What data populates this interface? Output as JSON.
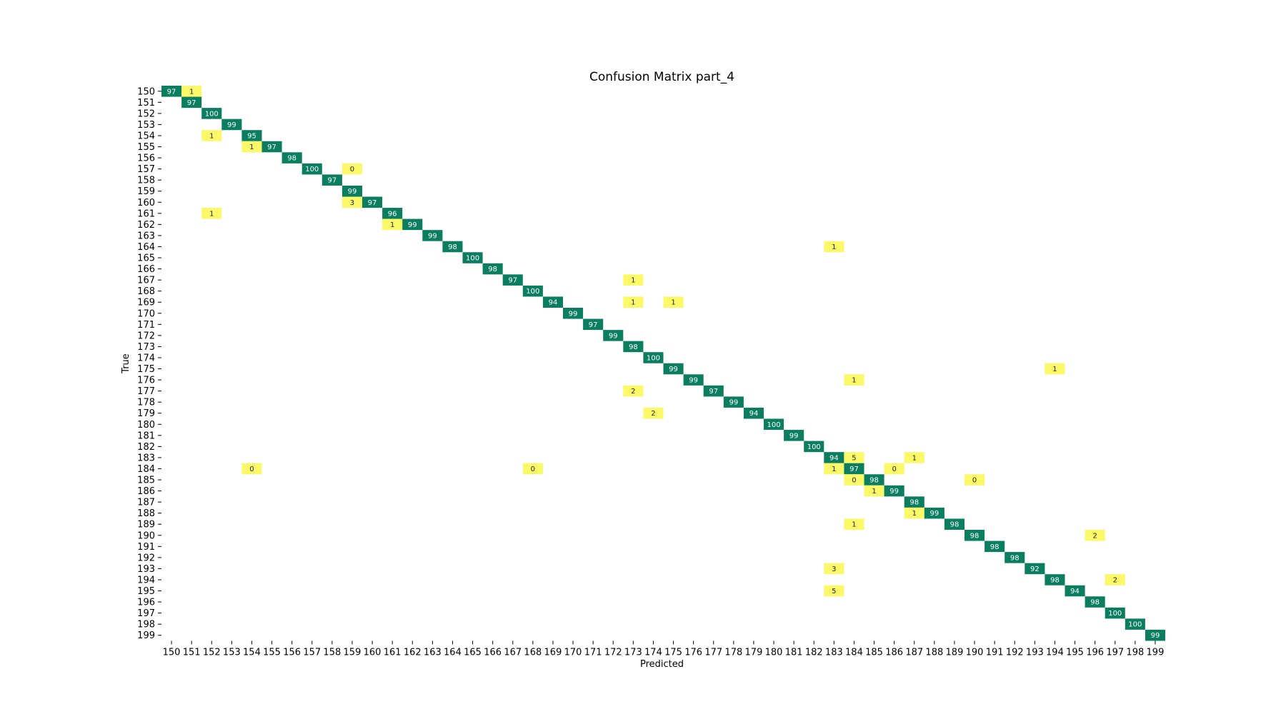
{
  "chart_data": {
    "type": "heatmap",
    "title": "Confusion Matrix part_4",
    "xlabel": "Predicted",
    "ylabel": "True",
    "x_categories": [
      "150",
      "151",
      "152",
      "153",
      "154",
      "155",
      "156",
      "157",
      "158",
      "159",
      "160",
      "161",
      "162",
      "163",
      "164",
      "165",
      "166",
      "167",
      "168",
      "169",
      "170",
      "171",
      "172",
      "173",
      "174",
      "175",
      "176",
      "177",
      "178",
      "179",
      "180",
      "181",
      "182",
      "183",
      "184",
      "185",
      "186",
      "187",
      "188",
      "189",
      "190",
      "191",
      "192",
      "193",
      "194",
      "195",
      "196",
      "197",
      "198",
      "199"
    ],
    "y_categories": [
      "150",
      "151",
      "152",
      "153",
      "154",
      "155",
      "156",
      "157",
      "158",
      "159",
      "160",
      "161",
      "162",
      "163",
      "164",
      "165",
      "166",
      "167",
      "168",
      "169",
      "170",
      "171",
      "172",
      "173",
      "174",
      "175",
      "176",
      "177",
      "178",
      "179",
      "180",
      "181",
      "182",
      "183",
      "184",
      "185",
      "186",
      "187",
      "188",
      "189",
      "190",
      "191",
      "192",
      "193",
      "194",
      "195",
      "196",
      "197",
      "198",
      "199"
    ],
    "cells": [
      {
        "true": "150",
        "pred": "150",
        "value": 97
      },
      {
        "true": "150",
        "pred": "151",
        "value": 1
      },
      {
        "true": "151",
        "pred": "151",
        "value": 97
      },
      {
        "true": "152",
        "pred": "152",
        "value": 100
      },
      {
        "true": "153",
        "pred": "153",
        "value": 99
      },
      {
        "true": "154",
        "pred": "152",
        "value": 1
      },
      {
        "true": "154",
        "pred": "154",
        "value": 95
      },
      {
        "true": "155",
        "pred": "154",
        "value": 1
      },
      {
        "true": "155",
        "pred": "155",
        "value": 97
      },
      {
        "true": "156",
        "pred": "156",
        "value": 98
      },
      {
        "true": "157",
        "pred": "157",
        "value": 100
      },
      {
        "true": "157",
        "pred": "159",
        "value": 0
      },
      {
        "true": "158",
        "pred": "158",
        "value": 97
      },
      {
        "true": "159",
        "pred": "159",
        "value": 99
      },
      {
        "true": "160",
        "pred": "159",
        "value": 3
      },
      {
        "true": "160",
        "pred": "160",
        "value": 97
      },
      {
        "true": "161",
        "pred": "152",
        "value": 1
      },
      {
        "true": "161",
        "pred": "161",
        "value": 96
      },
      {
        "true": "162",
        "pred": "161",
        "value": 1
      },
      {
        "true": "162",
        "pred": "162",
        "value": 99
      },
      {
        "true": "163",
        "pred": "163",
        "value": 99
      },
      {
        "true": "164",
        "pred": "164",
        "value": 98
      },
      {
        "true": "164",
        "pred": "183",
        "value": 1
      },
      {
        "true": "165",
        "pred": "165",
        "value": 100
      },
      {
        "true": "166",
        "pred": "166",
        "value": 98
      },
      {
        "true": "167",
        "pred": "167",
        "value": 97
      },
      {
        "true": "167",
        "pred": "173",
        "value": 1
      },
      {
        "true": "168",
        "pred": "168",
        "value": 100
      },
      {
        "true": "169",
        "pred": "169",
        "value": 94
      },
      {
        "true": "169",
        "pred": "173",
        "value": 1
      },
      {
        "true": "169",
        "pred": "175",
        "value": 1
      },
      {
        "true": "170",
        "pred": "170",
        "value": 99
      },
      {
        "true": "171",
        "pred": "171",
        "value": 97
      },
      {
        "true": "172",
        "pred": "172",
        "value": 99
      },
      {
        "true": "173",
        "pred": "173",
        "value": 98
      },
      {
        "true": "174",
        "pred": "174",
        "value": 100
      },
      {
        "true": "175",
        "pred": "175",
        "value": 99
      },
      {
        "true": "175",
        "pred": "194",
        "value": 1
      },
      {
        "true": "176",
        "pred": "176",
        "value": 99
      },
      {
        "true": "176",
        "pred": "184",
        "value": 1
      },
      {
        "true": "177",
        "pred": "173",
        "value": 2
      },
      {
        "true": "177",
        "pred": "177",
        "value": 97
      },
      {
        "true": "178",
        "pred": "178",
        "value": 99
      },
      {
        "true": "179",
        "pred": "174",
        "value": 2
      },
      {
        "true": "179",
        "pred": "179",
        "value": 94
      },
      {
        "true": "180",
        "pred": "180",
        "value": 100
      },
      {
        "true": "181",
        "pred": "181",
        "value": 99
      },
      {
        "true": "182",
        "pred": "182",
        "value": 100
      },
      {
        "true": "183",
        "pred": "183",
        "value": 94
      },
      {
        "true": "183",
        "pred": "184",
        "value": 5
      },
      {
        "true": "183",
        "pred": "187",
        "value": 1
      },
      {
        "true": "184",
        "pred": "154",
        "value": 0
      },
      {
        "true": "184",
        "pred": "168",
        "value": 0
      },
      {
        "true": "184",
        "pred": "183",
        "value": 1
      },
      {
        "true": "184",
        "pred": "184",
        "value": 97
      },
      {
        "true": "184",
        "pred": "186",
        "value": 0
      },
      {
        "true": "185",
        "pred": "184",
        "value": 0
      },
      {
        "true": "185",
        "pred": "185",
        "value": 98
      },
      {
        "true": "185",
        "pred": "190",
        "value": 0
      },
      {
        "true": "186",
        "pred": "185",
        "value": 1
      },
      {
        "true": "186",
        "pred": "186",
        "value": 99
      },
      {
        "true": "187",
        "pred": "187",
        "value": 98
      },
      {
        "true": "188",
        "pred": "187",
        "value": 1
      },
      {
        "true": "188",
        "pred": "188",
        "value": 99
      },
      {
        "true": "189",
        "pred": "184",
        "value": 1
      },
      {
        "true": "189",
        "pred": "189",
        "value": 98
      },
      {
        "true": "190",
        "pred": "190",
        "value": 98
      },
      {
        "true": "190",
        "pred": "196",
        "value": 2
      },
      {
        "true": "191",
        "pred": "191",
        "value": 98
      },
      {
        "true": "192",
        "pred": "192",
        "value": 98
      },
      {
        "true": "193",
        "pred": "183",
        "value": 3
      },
      {
        "true": "193",
        "pred": "193",
        "value": 92
      },
      {
        "true": "194",
        "pred": "194",
        "value": 98
      },
      {
        "true": "194",
        "pred": "197",
        "value": 2
      },
      {
        "true": "195",
        "pred": "183",
        "value": 5
      },
      {
        "true": "195",
        "pred": "195",
        "value": 94
      },
      {
        "true": "196",
        "pred": "196",
        "value": 98
      },
      {
        "true": "197",
        "pred": "197",
        "value": 100
      },
      {
        "true": "198",
        "pred": "198",
        "value": 100
      },
      {
        "true": "199",
        "pred": "199",
        "value": 99
      }
    ],
    "colors": {
      "diagonal_cell": "#0a7e5f",
      "offdiagonal_cell": "#fbf968",
      "diagonal_text": "#ffffff",
      "offdiagonal_text": "#222222"
    },
    "grid": false,
    "legend": "none"
  }
}
